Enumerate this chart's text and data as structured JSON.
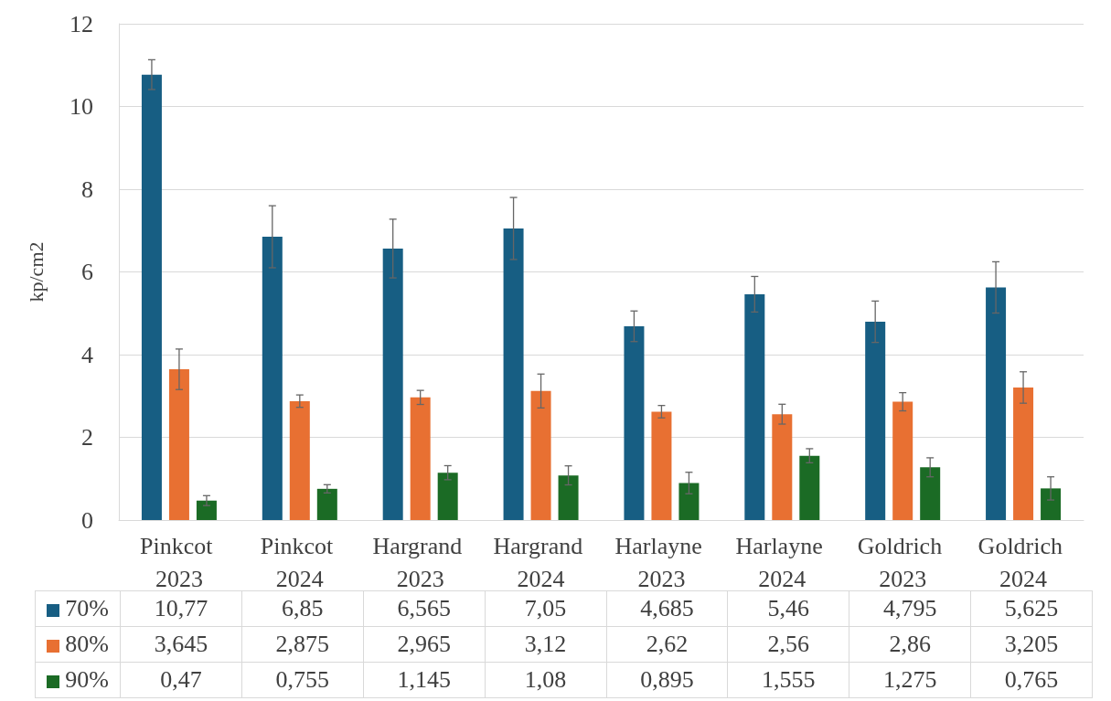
{
  "chart_data": {
    "type": "bar",
    "ylabel": "kp/cm2",
    "categories": [
      "Pinkcot 2023",
      "Pinkcot 2024",
      "Hargrand 2023",
      "Hargrand 2024",
      "Harlayne 2023",
      "Harlayne 2024",
      "Goldrich 2023",
      "Goldrich 2024"
    ],
    "series": [
      {
        "name": "70%",
        "color": "#175e83",
        "values": [
          10.77,
          6.85,
          6.565,
          7.05,
          4.685,
          5.46,
          4.795,
          5.625
        ],
        "value_labels": [
          "10,77",
          "6,85",
          "6,565",
          "7,05",
          "4,685",
          "5,46",
          "4,795",
          "5,625"
        ],
        "errors": [
          0.36,
          0.75,
          0.71,
          0.75,
          0.37,
          0.43,
          0.5,
          0.62
        ]
      },
      {
        "name": "80%",
        "color": "#e87032",
        "values": [
          3.645,
          2.875,
          2.965,
          3.12,
          2.62,
          2.56,
          2.86,
          3.205
        ],
        "value_labels": [
          "3,645",
          "2,875",
          "2,965",
          "3,12",
          "2,62",
          "2,56",
          "2,86",
          "3,205"
        ],
        "errors": [
          0.49,
          0.15,
          0.17,
          0.41,
          0.15,
          0.24,
          0.22,
          0.38
        ]
      },
      {
        "name": "90%",
        "color": "#1b6b25",
        "values": [
          0.47,
          0.755,
          1.145,
          1.08,
          0.895,
          1.555,
          1.275,
          0.765
        ],
        "value_labels": [
          "0,47",
          "0,755",
          "1,145",
          "1,08",
          "0,895",
          "1,555",
          "1,275",
          "0,765"
        ],
        "errors": [
          0.12,
          0.1,
          0.17,
          0.23,
          0.26,
          0.17,
          0.23,
          0.28
        ]
      }
    ],
    "ylim": [
      0,
      12
    ],
    "yticks": [
      0,
      2,
      4,
      6,
      8,
      10,
      12
    ],
    "grid": "y",
    "legend": "bottom"
  }
}
